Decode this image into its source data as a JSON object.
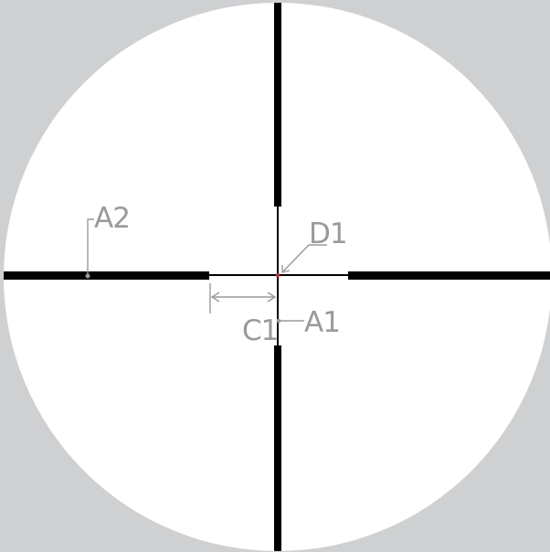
{
  "diagram": {
    "labels": {
      "a1": "A1",
      "a2": "A2",
      "c1": "C1",
      "d1": "D1"
    },
    "colors": {
      "background": "#cfd0d2",
      "field": "#ffffff",
      "reticle": "#000000",
      "annotation": "#9a9a9a",
      "center_dot": "#c0272d"
    }
  }
}
